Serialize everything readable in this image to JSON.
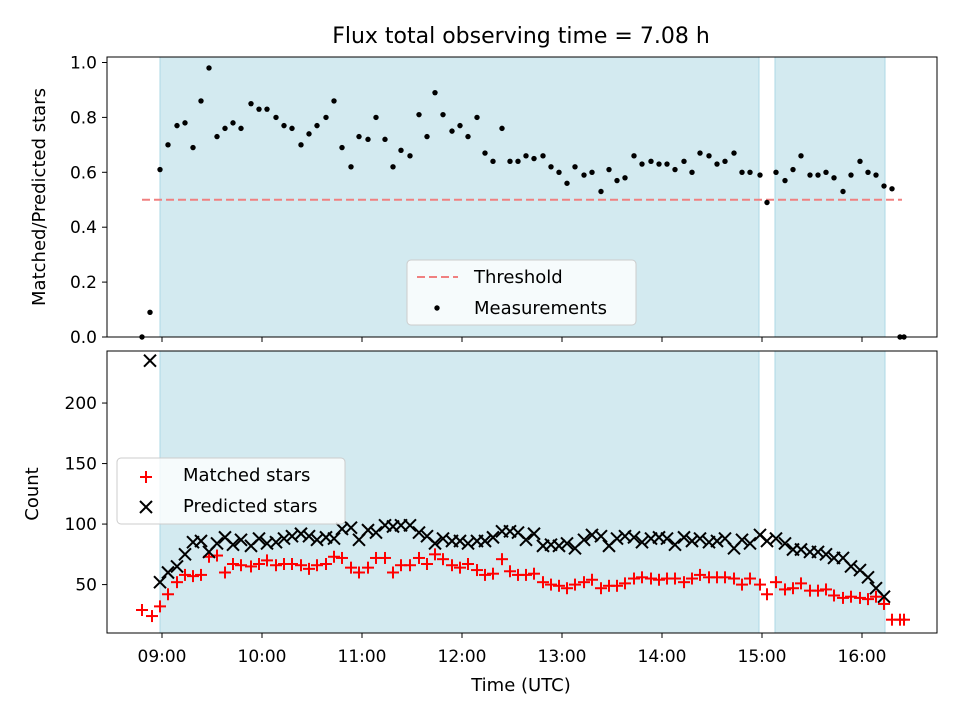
{
  "chart_data": {
    "title": "Flux total observing time = 7.08 h",
    "xlabel": "Time (UTC)",
    "x_range_hours": [
      8.45,
      16.75
    ],
    "x_ticks": [
      {
        "t": 9,
        "label": "09:00"
      },
      {
        "t": 10,
        "label": "10:00"
      },
      {
        "t": 11,
        "label": "11:00"
      },
      {
        "t": 12,
        "label": "12:00"
      },
      {
        "t": 13,
        "label": "13:00"
      },
      {
        "t": 14,
        "label": "14:00"
      },
      {
        "t": 15,
        "label": "15:00"
      },
      {
        "t": 16,
        "label": "16:00"
      }
    ],
    "shaded_intervals_hours": [
      [
        8.98,
        14.97
      ],
      [
        15.13,
        16.23
      ]
    ],
    "shade_color": "#d3eaf0",
    "top": {
      "type": "scatter",
      "ylabel": "Matched/Predicted stars",
      "ylim": [
        0,
        1.02
      ],
      "y_ticks": [
        0.0,
        0.2,
        0.4,
        0.6,
        0.8,
        1.0
      ],
      "threshold": {
        "value": 0.5,
        "x_range_hours": [
          8.8,
          16.4
        ],
        "color": "#f08080",
        "label": "Threshold"
      },
      "series_label": "Measurements",
      "legend_location": "lower center",
      "points": [
        [
          8.8,
          0.0
        ],
        [
          8.88,
          0.09
        ],
        [
          8.98,
          0.61
        ],
        [
          9.06,
          0.7
        ],
        [
          9.15,
          0.77
        ],
        [
          9.23,
          0.78
        ],
        [
          9.31,
          0.69
        ],
        [
          9.39,
          0.86
        ],
        [
          9.47,
          0.98
        ],
        [
          9.55,
          0.73
        ],
        [
          9.63,
          0.76
        ],
        [
          9.71,
          0.78
        ],
        [
          9.79,
          0.76
        ],
        [
          9.89,
          0.85
        ],
        [
          9.97,
          0.83
        ],
        [
          10.05,
          0.83
        ],
        [
          10.14,
          0.8
        ],
        [
          10.22,
          0.77
        ],
        [
          10.3,
          0.76
        ],
        [
          10.39,
          0.7
        ],
        [
          10.47,
          0.74
        ],
        [
          10.55,
          0.77
        ],
        [
          10.64,
          0.8
        ],
        [
          10.72,
          0.86
        ],
        [
          10.8,
          0.69
        ],
        [
          10.89,
          0.62
        ],
        [
          10.97,
          0.73
        ],
        [
          11.06,
          0.72
        ],
        [
          11.14,
          0.8
        ],
        [
          11.23,
          0.72
        ],
        [
          11.31,
          0.62
        ],
        [
          11.39,
          0.68
        ],
        [
          11.48,
          0.66
        ],
        [
          11.57,
          0.81
        ],
        [
          11.65,
          0.73
        ],
        [
          11.73,
          0.89
        ],
        [
          11.81,
          0.81
        ],
        [
          11.9,
          0.75
        ],
        [
          11.98,
          0.77
        ],
        [
          12.06,
          0.73
        ],
        [
          12.15,
          0.8
        ],
        [
          12.23,
          0.67
        ],
        [
          12.31,
          0.64
        ],
        [
          12.4,
          0.76
        ],
        [
          12.48,
          0.64
        ],
        [
          12.56,
          0.64
        ],
        [
          12.64,
          0.66
        ],
        [
          12.72,
          0.65
        ],
        [
          12.81,
          0.66
        ],
        [
          12.89,
          0.62
        ],
        [
          12.97,
          0.6
        ],
        [
          13.05,
          0.56
        ],
        [
          13.13,
          0.62
        ],
        [
          13.22,
          0.59
        ],
        [
          13.3,
          0.6
        ],
        [
          13.39,
          0.53
        ],
        [
          13.47,
          0.61
        ],
        [
          13.55,
          0.57
        ],
        [
          13.63,
          0.58
        ],
        [
          13.72,
          0.66
        ],
        [
          13.8,
          0.63
        ],
        [
          13.89,
          0.64
        ],
        [
          13.97,
          0.63
        ],
        [
          14.05,
          0.63
        ],
        [
          14.13,
          0.61
        ],
        [
          14.22,
          0.64
        ],
        [
          14.3,
          0.6
        ],
        [
          14.38,
          0.67
        ],
        [
          14.47,
          0.66
        ],
        [
          14.55,
          0.63
        ],
        [
          14.63,
          0.64
        ],
        [
          14.72,
          0.67
        ],
        [
          14.8,
          0.6
        ],
        [
          14.88,
          0.6
        ],
        [
          14.98,
          0.59
        ],
        [
          15.05,
          0.49
        ],
        [
          15.14,
          0.6
        ],
        [
          15.23,
          0.57
        ],
        [
          15.31,
          0.61
        ],
        [
          15.39,
          0.66
        ],
        [
          15.48,
          0.59
        ],
        [
          15.56,
          0.59
        ],
        [
          15.64,
          0.6
        ],
        [
          15.72,
          0.58
        ],
        [
          15.81,
          0.53
        ],
        [
          15.89,
          0.59
        ],
        [
          15.98,
          0.64
        ],
        [
          16.06,
          0.6
        ],
        [
          16.14,
          0.59
        ],
        [
          16.22,
          0.55
        ],
        [
          16.3,
          0.54
        ],
        [
          16.38,
          0.0
        ],
        [
          16.42,
          0.0
        ]
      ]
    },
    "bottom": {
      "type": "scatter",
      "ylabel": "Count",
      "ylim": [
        10,
        243
      ],
      "y_ticks": [
        50,
        100,
        150,
        200
      ],
      "legend_location": "center left",
      "series": [
        {
          "name": "Matched stars",
          "marker": "plus",
          "color": "#ff0000",
          "points": [
            [
              8.8,
              29
            ],
            [
              8.9,
              24
            ],
            [
              8.98,
              32
            ],
            [
              9.06,
              42
            ],
            [
              9.15,
              52
            ],
            [
              9.23,
              58
            ],
            [
              9.31,
              57
            ],
            [
              9.39,
              58
            ],
            [
              9.47,
              73
            ],
            [
              9.55,
              74
            ],
            [
              9.63,
              60
            ],
            [
              9.71,
              67
            ],
            [
              9.79,
              66
            ],
            [
              9.89,
              65
            ],
            [
              9.97,
              67
            ],
            [
              10.05,
              70
            ],
            [
              10.14,
              66
            ],
            [
              10.22,
              67
            ],
            [
              10.3,
              67
            ],
            [
              10.39,
              66
            ],
            [
              10.47,
              63
            ],
            [
              10.55,
              66
            ],
            [
              10.64,
              67
            ],
            [
              10.72,
              73
            ],
            [
              10.8,
              72
            ],
            [
              10.89,
              64
            ],
            [
              10.97,
              60
            ],
            [
              11.06,
              64
            ],
            [
              11.14,
              72
            ],
            [
              11.23,
              72
            ],
            [
              11.31,
              60
            ],
            [
              11.39,
              66
            ],
            [
              11.48,
              66
            ],
            [
              11.57,
              72
            ],
            [
              11.65,
              67
            ],
            [
              11.73,
              75
            ],
            [
              11.81,
              71
            ],
            [
              11.9,
              66
            ],
            [
              11.98,
              64
            ],
            [
              12.06,
              67
            ],
            [
              12.15,
              62
            ],
            [
              12.23,
              58
            ],
            [
              12.31,
              59
            ],
            [
              12.4,
              71
            ],
            [
              12.48,
              61
            ],
            [
              12.56,
              58
            ],
            [
              12.64,
              58
            ],
            [
              12.72,
              59
            ],
            [
              12.81,
              52
            ],
            [
              12.89,
              50
            ],
            [
              12.97,
              49
            ],
            [
              13.05,
              47
            ],
            [
              13.13,
              50
            ],
            [
              13.22,
              52
            ],
            [
              13.3,
              54
            ],
            [
              13.39,
              47
            ],
            [
              13.47,
              49
            ],
            [
              13.55,
              49
            ],
            [
              13.63,
              51
            ],
            [
              13.72,
              55
            ],
            [
              13.8,
              56
            ],
            [
              13.89,
              55
            ],
            [
              13.97,
              54
            ],
            [
              14.05,
              55
            ],
            [
              14.13,
              55
            ],
            [
              14.22,
              52
            ],
            [
              14.3,
              55
            ],
            [
              14.38,
              58
            ],
            [
              14.47,
              56
            ],
            [
              14.55,
              56
            ],
            [
              14.63,
              56
            ],
            [
              14.72,
              55
            ],
            [
              14.8,
              50
            ],
            [
              14.88,
              55
            ],
            [
              14.98,
              50
            ],
            [
              15.05,
              42
            ],
            [
              15.14,
              52
            ],
            [
              15.23,
              46
            ],
            [
              15.31,
              47
            ],
            [
              15.39,
              51
            ],
            [
              15.48,
              45
            ],
            [
              15.56,
              45
            ],
            [
              15.64,
              46
            ],
            [
              15.72,
              41
            ],
            [
              15.81,
              39
            ],
            [
              15.89,
              40
            ],
            [
              15.98,
              39
            ],
            [
              16.06,
              38
            ],
            [
              16.14,
              40
            ],
            [
              16.22,
              34
            ],
            [
              16.3,
              21
            ],
            [
              16.38,
              21
            ],
            [
              16.42,
              21
            ]
          ]
        },
        {
          "name": "Predicted stars",
          "marker": "x",
          "color": "#000000",
          "points": [
            [
              8.88,
              235
            ],
            [
              8.98,
              52
            ],
            [
              9.06,
              60
            ],
            [
              9.15,
              65
            ],
            [
              9.23,
              75
            ],
            [
              9.31,
              85
            ],
            [
              9.39,
              86
            ],
            [
              9.47,
              77
            ],
            [
              9.55,
              84
            ],
            [
              9.63,
              89
            ],
            [
              9.71,
              83
            ],
            [
              9.79,
              87
            ],
            [
              9.89,
              82
            ],
            [
              9.97,
              88
            ],
            [
              10.05,
              84
            ],
            [
              10.14,
              85
            ],
            [
              10.22,
              88
            ],
            [
              10.3,
              90
            ],
            [
              10.39,
              92
            ],
            [
              10.47,
              90
            ],
            [
              10.55,
              87
            ],
            [
              10.64,
              89
            ],
            [
              10.72,
              88
            ],
            [
              10.8,
              96
            ],
            [
              10.89,
              97
            ],
            [
              10.97,
              87
            ],
            [
              11.06,
              95
            ],
            [
              11.14,
              93
            ],
            [
              11.23,
              99
            ],
            [
              11.31,
              98
            ],
            [
              11.39,
              99
            ],
            [
              11.48,
              99
            ],
            [
              11.57,
              93
            ],
            [
              11.65,
              90
            ],
            [
              11.73,
              84
            ],
            [
              11.81,
              88
            ],
            [
              11.9,
              86
            ],
            [
              11.98,
              86
            ],
            [
              12.06,
              84
            ],
            [
              12.15,
              86
            ],
            [
              12.23,
              86
            ],
            [
              12.31,
              89
            ],
            [
              12.4,
              94
            ],
            [
              12.48,
              94
            ],
            [
              12.56,
              93
            ],
            [
              12.64,
              87
            ],
            [
              12.72,
              92
            ],
            [
              12.81,
              82
            ],
            [
              12.89,
              83
            ],
            [
              12.97,
              82
            ],
            [
              13.05,
              84
            ],
            [
              13.13,
              80
            ],
            [
              13.22,
              87
            ],
            [
              13.3,
              91
            ],
            [
              13.39,
              90
            ],
            [
              13.47,
              82
            ],
            [
              13.55,
              88
            ],
            [
              13.63,
              90
            ],
            [
              13.72,
              89
            ],
            [
              13.8,
              85
            ],
            [
              13.89,
              88
            ],
            [
              13.97,
              89
            ],
            [
              14.05,
              88
            ],
            [
              14.13,
              83
            ],
            [
              14.22,
              89
            ],
            [
              14.3,
              86
            ],
            [
              14.38,
              88
            ],
            [
              14.47,
              85
            ],
            [
              14.55,
              86
            ],
            [
              14.63,
              88
            ],
            [
              14.72,
              80
            ],
            [
              14.8,
              87
            ],
            [
              14.88,
              84
            ],
            [
              14.98,
              91
            ],
            [
              15.05,
              86
            ],
            [
              15.14,
              88
            ],
            [
              15.23,
              84
            ],
            [
              15.31,
              79
            ],
            [
              15.39,
              79
            ],
            [
              15.48,
              77
            ],
            [
              15.56,
              77
            ],
            [
              15.64,
              75
            ],
            [
              15.72,
              72
            ],
            [
              15.81,
              72
            ],
            [
              15.89,
              65
            ],
            [
              15.98,
              62
            ],
            [
              16.06,
              56
            ],
            [
              16.14,
              47
            ],
            [
              16.22,
              40
            ]
          ]
        }
      ]
    }
  }
}
